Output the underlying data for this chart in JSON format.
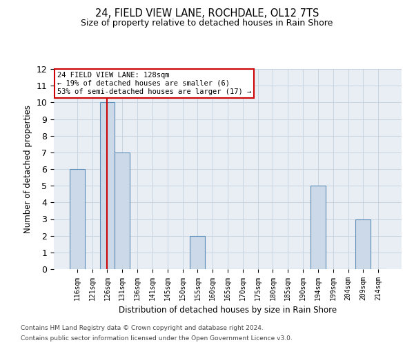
{
  "title1": "24, FIELD VIEW LANE, ROCHDALE, OL12 7TS",
  "title2": "Size of property relative to detached houses in Rain Shore",
  "xlabel": "Distribution of detached houses by size in Rain Shore",
  "ylabel": "Number of detached properties",
  "footer1": "Contains HM Land Registry data © Crown copyright and database right 2024.",
  "footer2": "Contains public sector information licensed under the Open Government Licence v3.0.",
  "bins": [
    "116sqm",
    "121sqm",
    "126sqm",
    "131sqm",
    "136sqm",
    "141sqm",
    "145sqm",
    "150sqm",
    "155sqm",
    "160sqm",
    "165sqm",
    "170sqm",
    "175sqm",
    "180sqm",
    "185sqm",
    "190sqm",
    "194sqm",
    "199sqm",
    "204sqm",
    "209sqm",
    "214sqm"
  ],
  "values": [
    6,
    0,
    10,
    7,
    0,
    0,
    0,
    0,
    2,
    0,
    0,
    0,
    0,
    0,
    0,
    0,
    5,
    0,
    0,
    3,
    0
  ],
  "bar_color": "#ccd9e8",
  "bar_edge_color": "#5b8db8",
  "red_line_index": 2,
  "ylim": [
    0,
    12
  ],
  "yticks": [
    0,
    1,
    2,
    3,
    4,
    5,
    6,
    7,
    8,
    9,
    10,
    11,
    12
  ],
  "annotation_title": "24 FIELD VIEW LANE: 128sqm",
  "annotation_line1": "← 19% of detached houses are smaller (6)",
  "annotation_line2": "53% of semi-detached houses are larger (17) →",
  "annotation_box_color": "#ffffff",
  "annotation_box_edge": "#cc0000",
  "grid_color": "#c8d4e0",
  "bg_color": "#e8eef4"
}
